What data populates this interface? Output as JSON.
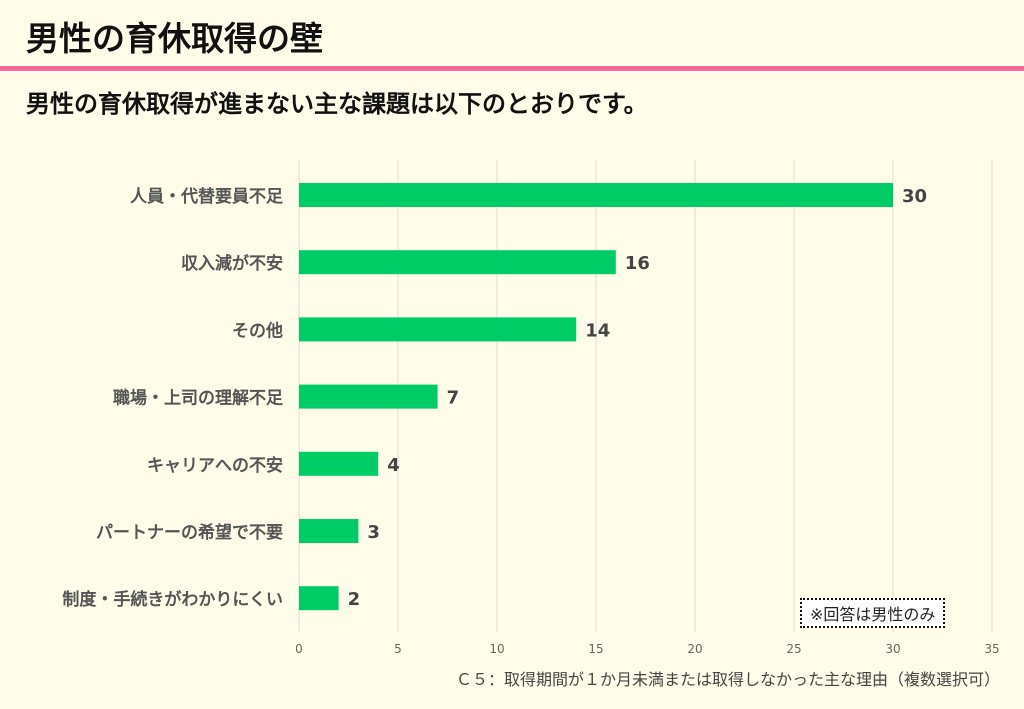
{
  "header": {
    "title": "男性の育休取得の壁",
    "subtitle": "男性の育休取得が進まない主な課題は以下のとおりです。"
  },
  "note": "※回答は男性のみ",
  "footnote": "Ｃ５：取得期間が１か月未満または取得しなかった主な理由（複数選択可）",
  "colors": {
    "bar": "#00cc66",
    "accent": "#ff6699"
  },
  "chart_data": {
    "type": "bar",
    "orientation": "horizontal",
    "categories": [
      "人員・代替要員不足",
      "収入減が不安",
      "その他",
      "職場・上司の理解不足",
      "キャリアへの不安",
      "パートナーの希望で不要",
      "制度・手続きがわかりにくい"
    ],
    "values": [
      30,
      16,
      14,
      7,
      4,
      3,
      2
    ],
    "xlim": [
      0,
      35
    ],
    "xticks": [
      0,
      5,
      10,
      15,
      20,
      25,
      30,
      35
    ],
    "grid": true
  }
}
